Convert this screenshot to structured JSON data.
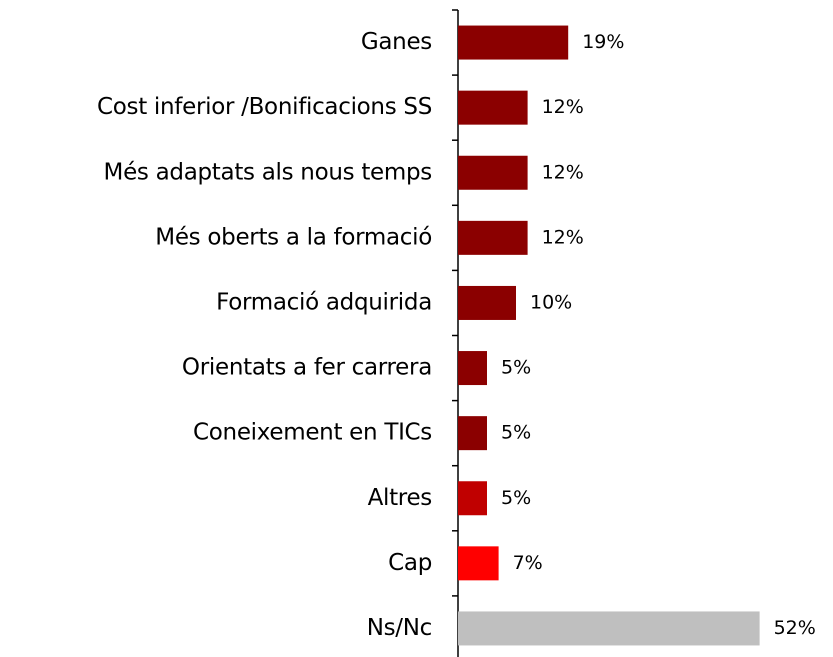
{
  "chart_data": {
    "type": "hbar",
    "categories": [
      "Ganes",
      "Cost inferior /Bonificacions SS",
      "Més adaptats als nous temps",
      "Més oberts a la formació",
      "Formació adquirida",
      "Orientats a fer carrera",
      "Coneixement en TICs",
      "Altres",
      "Cap",
      "Ns/Nc"
    ],
    "values": [
      19,
      12,
      12,
      12,
      10,
      5,
      5,
      5,
      7,
      52
    ],
    "value_labels": [
      "19%",
      "12%",
      "12%",
      "12%",
      "10%",
      "5%",
      "5%",
      "5%",
      "7%",
      "52%"
    ],
    "colors": [
      "#8b0000",
      "#8b0000",
      "#8b0000",
      "#8b0000",
      "#8b0000",
      "#8b0000",
      "#8b0000",
      "#c00000",
      "#ff0000",
      "#bfbfbf"
    ]
  }
}
